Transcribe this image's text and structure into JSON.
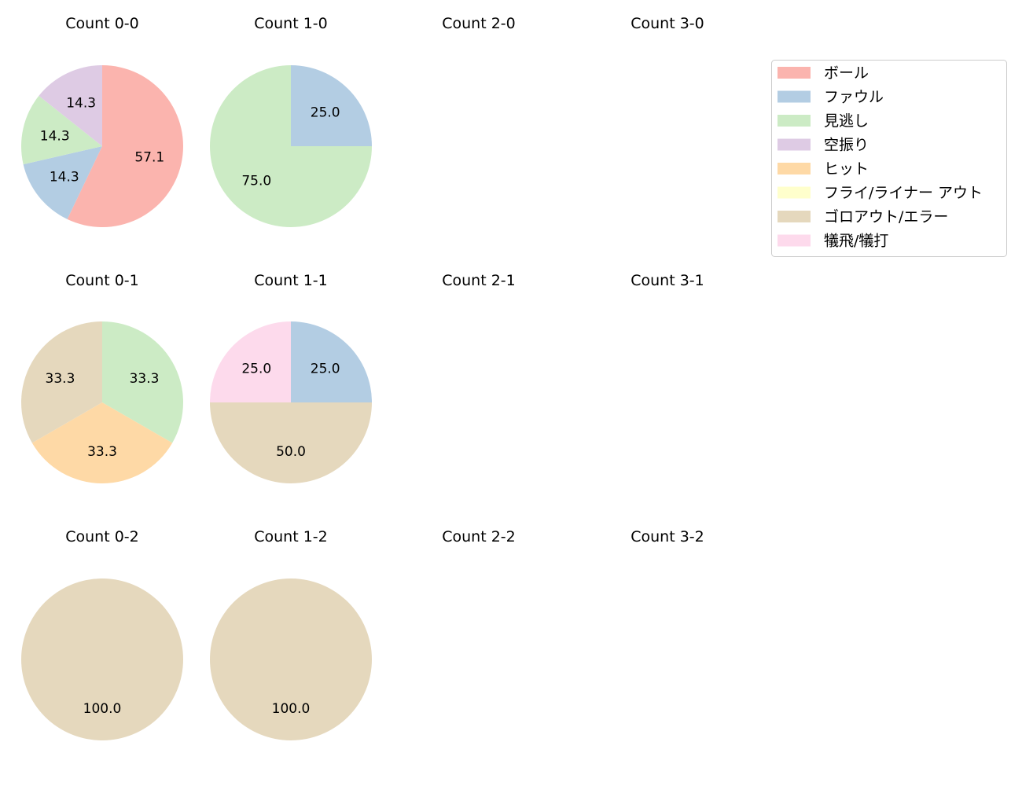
{
  "chart_data": [
    {
      "type": "pie",
      "title": "Count 0-0",
      "labels": [
        "ボール",
        "ファウル",
        "見逃し",
        "空振り"
      ],
      "values": [
        57.1,
        14.3,
        14.3,
        14.3
      ]
    },
    {
      "type": "pie",
      "title": "Count 1-0",
      "labels": [
        "ファウル",
        "見逃し"
      ],
      "values": [
        25.0,
        75.0
      ]
    },
    {
      "type": "pie",
      "title": "Count 2-0",
      "labels": [],
      "values": []
    },
    {
      "type": "pie",
      "title": "Count 3-0",
      "labels": [],
      "values": []
    },
    {
      "type": "pie",
      "title": "Count 0-1",
      "labels": [
        "見逃し",
        "ヒット",
        "ゴロアウト/エラー"
      ],
      "values": [
        33.3,
        33.3,
        33.3
      ]
    },
    {
      "type": "pie",
      "title": "Count 1-1",
      "labels": [
        "ファウル",
        "ゴロアウト/エラー",
        "犠飛/犠打"
      ],
      "values": [
        25.0,
        50.0,
        25.0
      ]
    },
    {
      "type": "pie",
      "title": "Count 2-1",
      "labels": [],
      "values": []
    },
    {
      "type": "pie",
      "title": "Count 3-1",
      "labels": [],
      "values": []
    },
    {
      "type": "pie",
      "title": "Count 0-2",
      "labels": [
        "ゴロアウト/エラー"
      ],
      "values": [
        100.0
      ]
    },
    {
      "type": "pie",
      "title": "Count 1-2",
      "labels": [
        "ゴロアウト/エラー"
      ],
      "values": [
        100.0
      ]
    },
    {
      "type": "pie",
      "title": "Count 2-2",
      "labels": [],
      "values": []
    },
    {
      "type": "pie",
      "title": "Count 3-2",
      "labels": [],
      "values": []
    }
  ],
  "legend": {
    "position": "top-right",
    "entries": [
      {
        "label": "ボール",
        "color": "#fbb4ae"
      },
      {
        "label": "ファウル",
        "color": "#b3cde3"
      },
      {
        "label": "見逃し",
        "color": "#ccebc5"
      },
      {
        "label": "空振り",
        "color": "#decbe4"
      },
      {
        "label": "ヒット",
        "color": "#fed9a6"
      },
      {
        "label": "フライ/ライナー アウト",
        "color": "#ffffcc"
      },
      {
        "label": "ゴロアウト/エラー",
        "color": "#e5d8bd"
      },
      {
        "label": "犠飛/犠打",
        "color": "#fddaec"
      }
    ]
  },
  "start_angle_deg": 90,
  "direction": "clockwise"
}
